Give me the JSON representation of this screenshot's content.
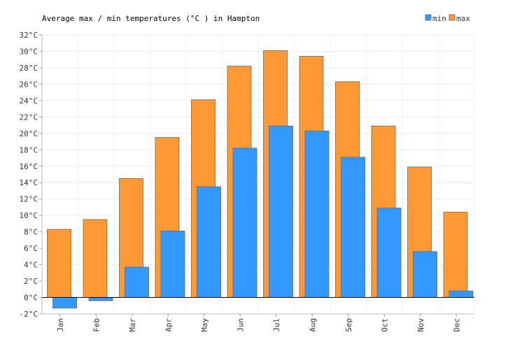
{
  "chart_data": {
    "type": "bar",
    "title": "Average max / min temperatures (°C ) in Hampton",
    "xlabel": "",
    "ylabel": "",
    "categories": [
      "Jan",
      "Feb",
      "Mar",
      "Apr",
      "May",
      "Jun",
      "Jul",
      "Aug",
      "Sep",
      "Oct",
      "Nov",
      "Dec"
    ],
    "series": [
      {
        "name": "max",
        "color": "#ff9933",
        "values": [
          8.3,
          9.5,
          14.5,
          19.5,
          24.1,
          28.2,
          30.1,
          29.4,
          26.3,
          20.9,
          15.9,
          10.4
        ]
      },
      {
        "name": "min",
        "color": "#3399ff",
        "values": [
          -1.3,
          -0.4,
          3.7,
          8.1,
          13.5,
          18.2,
          20.9,
          20.3,
          17.1,
          10.9,
          5.6,
          0.8
        ]
      }
    ],
    "ylim": [
      -2,
      32
    ],
    "yticks": [
      -2,
      0,
      2,
      4,
      6,
      8,
      10,
      12,
      14,
      16,
      18,
      20,
      22,
      24,
      26,
      28,
      30,
      32
    ],
    "ytick_suffix": "°C",
    "grid": true,
    "legend": "top-right"
  }
}
